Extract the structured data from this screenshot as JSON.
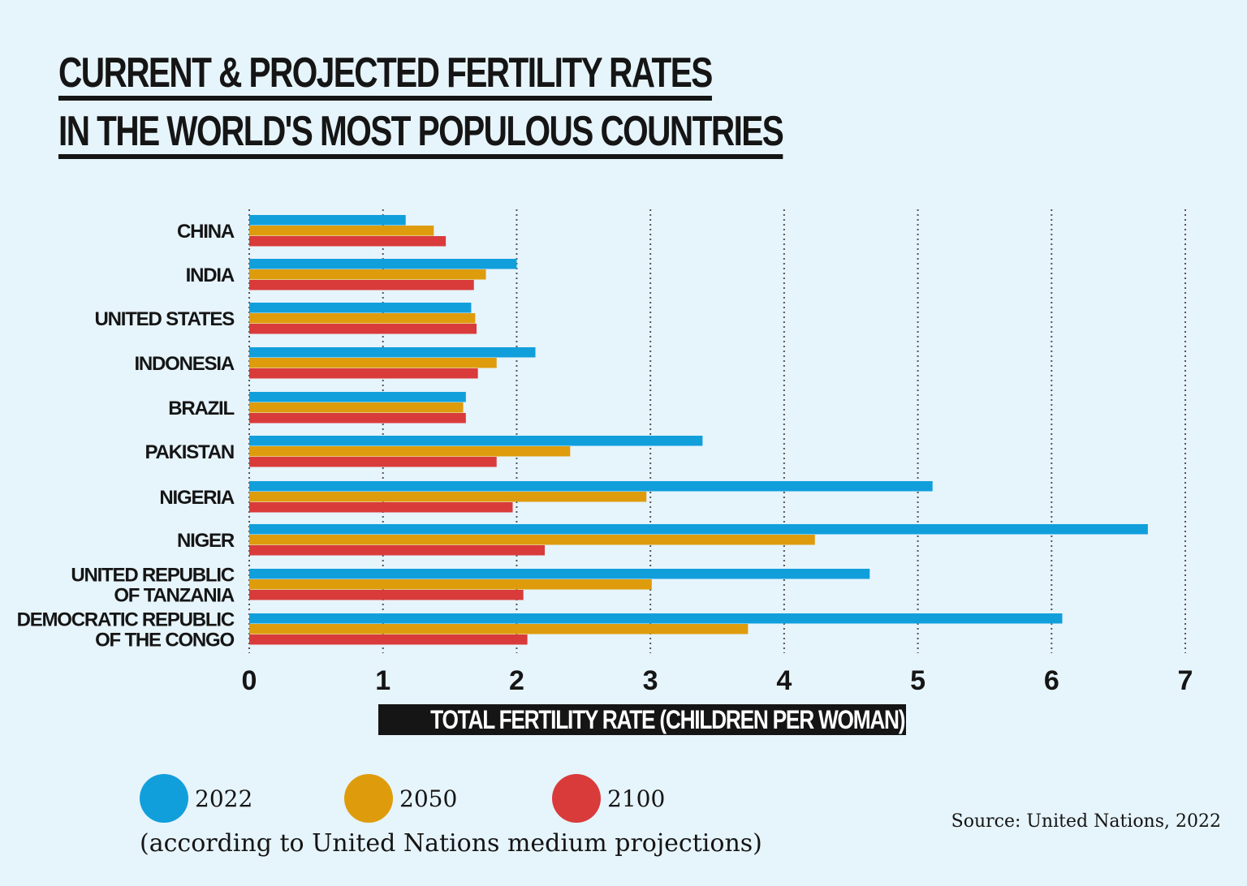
{
  "title": {
    "line1": "CURRENT & PROJECTED FERTILITY RATES",
    "line2": "IN THE WORLD'S MOST POPULOUS COUNTRIES"
  },
  "chart_data": {
    "type": "bar",
    "orientation": "horizontal",
    "title": "CURRENT & PROJECTED FERTILITY RATES IN THE WORLD'S MOST POPULOUS COUNTRIES",
    "xlabel": "TOTAL FERTILITY RATE (CHILDREN PER WOMAN)",
    "ylabel": "",
    "xlim": [
      0,
      7
    ],
    "xticks": [
      "0",
      "1",
      "2",
      "3",
      "4",
      "5",
      "6",
      "7"
    ],
    "grid": "vertical dotted",
    "legend_position": "bottom-left",
    "categories": [
      [
        "CHINA"
      ],
      [
        "INDIA"
      ],
      [
        "UNITED STATES"
      ],
      [
        "INDONESIA"
      ],
      [
        "BRAZIL"
      ],
      [
        "PAKISTAN"
      ],
      [
        "NIGERIA"
      ],
      [
        "NIGER"
      ],
      [
        "UNITED REPUBLIC",
        "OF TANZANIA"
      ],
      [
        "DEMOCRATIC REPUBLIC",
        "OF THE CONGO"
      ]
    ],
    "series": [
      {
        "name": "2022",
        "color": "#119fdc",
        "values": [
          1.17,
          2.0,
          1.66,
          2.14,
          1.62,
          3.39,
          5.11,
          6.72,
          4.64,
          6.08
        ]
      },
      {
        "name": "2050",
        "color": "#de9c0d",
        "values": [
          1.38,
          1.77,
          1.69,
          1.85,
          1.6,
          2.4,
          2.97,
          4.23,
          3.01,
          3.73
        ]
      },
      {
        "name": "2100",
        "color": "#d93b3b",
        "values": [
          1.47,
          1.68,
          1.7,
          1.71,
          1.62,
          1.85,
          1.97,
          2.21,
          2.05,
          2.08
        ]
      }
    ]
  },
  "legend_note": "(according to United Nations medium projections)",
  "source": "Source: United Nations, 2022"
}
